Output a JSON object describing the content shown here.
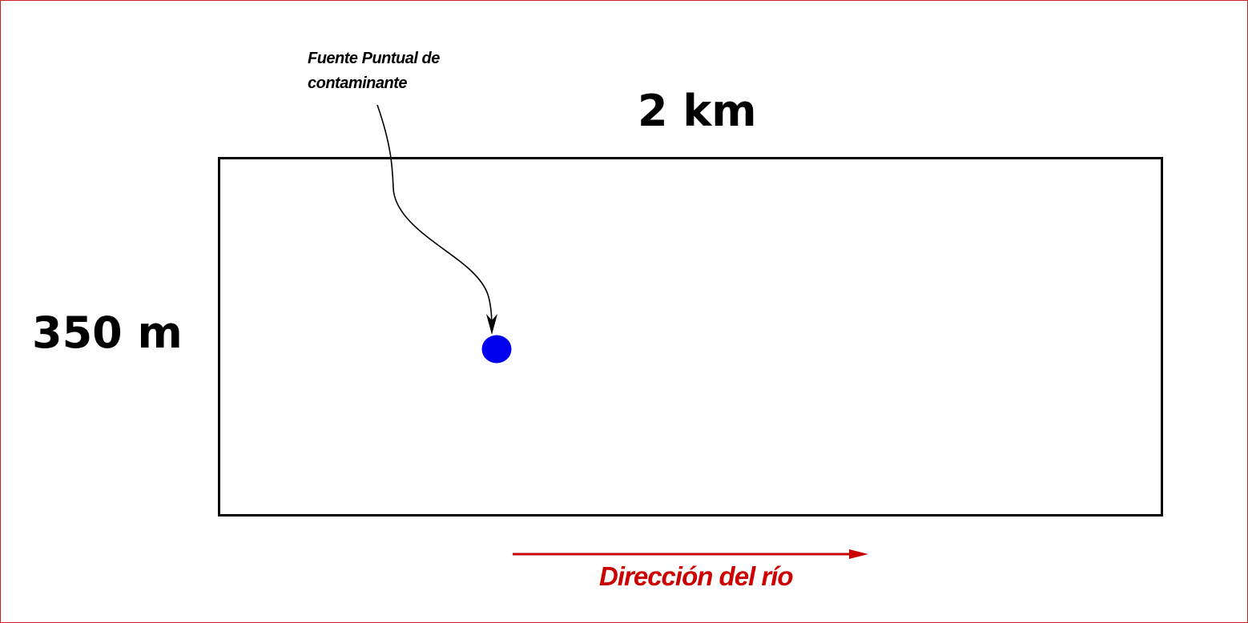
{
  "labels": {
    "source": "Fuente Puntual de contaminante",
    "width": "2 km",
    "height": "350 m",
    "flow": "Dirección del río"
  },
  "colors": {
    "source_point": "#0000ee",
    "flow_arrow": "#cc0000",
    "frame_border": "#cc2222",
    "outline": "#000000"
  }
}
